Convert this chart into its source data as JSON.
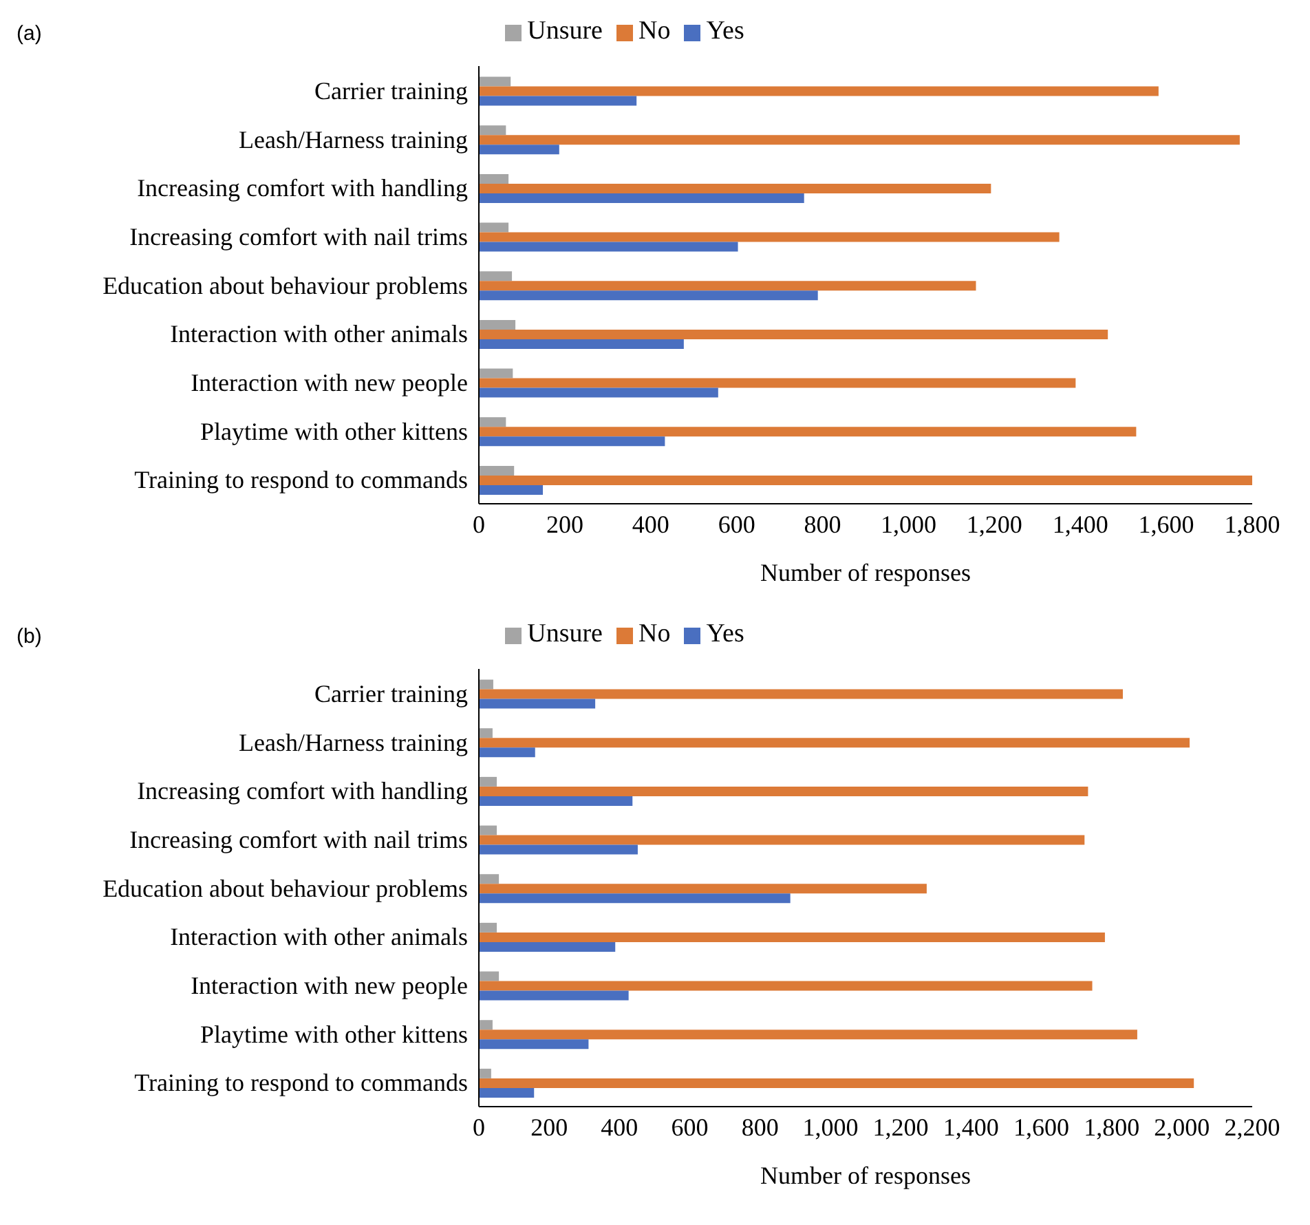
{
  "chart_data": [
    {
      "type": "bar",
      "title": "(a)",
      "orientation": "horizontal",
      "xlabel": "Number of responses",
      "legend": "top",
      "grid": false,
      "categories": [
        "Carrier training",
        "Leash/Harness training",
        "Increasing comfort with handling",
        "Increasing comfort with nail trims",
        "Education about behaviour problems",
        "Interaction with other animals",
        "Interaction with new people",
        "Playtime with other kittens",
        "Training to respond to commands"
      ],
      "xlim": [
        0,
        1800
      ],
      "xticks": [
        0,
        200,
        400,
        600,
        800,
        {
          "value": 1000,
          "label": "1,000"
        },
        {
          "value": 1200,
          "label": "1,200"
        },
        {
          "value": 1400,
          "label": "1,400"
        },
        {
          "value": 1600,
          "label": "1,600"
        },
        {
          "value": 1800,
          "label": "1,800"
        }
      ],
      "series": [
        {
          "name": "Unsure",
          "color": "#a5a5a5",
          "values": [
            74,
            63,
            69,
            69,
            77,
            85,
            79,
            63,
            82
          ]
        },
        {
          "name": "No",
          "color": "#dc7a37",
          "values": [
            1582,
            1771,
            1192,
            1351,
            1157,
            1464,
            1389,
            1530,
            1800
          ]
        },
        {
          "name": "Yes",
          "color": "#4a6fc0",
          "values": [
            367,
            187,
            757,
            603,
            789,
            477,
            557,
            433,
            149
          ]
        }
      ]
    },
    {
      "type": "bar",
      "title": "(b)",
      "orientation": "horizontal",
      "xlabel": "Number of responses",
      "legend": "top",
      "grid": false,
      "categories": [
        "Carrier training",
        "Leash/Harness training",
        "Increasing comfort with handling",
        "Increasing comfort with nail trims",
        "Education about behaviour problems",
        "Interaction with other animals",
        "Interaction with new people",
        "Playtime with other kittens",
        "Training to respond to commands"
      ],
      "xlim": [
        0,
        2200
      ],
      "xticks": [
        0,
        200,
        400,
        600,
        800,
        {
          "value": 1000,
          "label": "1,000"
        },
        {
          "value": 1200,
          "label": "1,200"
        },
        {
          "value": 1400,
          "label": "1,400"
        },
        {
          "value": 1600,
          "label": "1,600"
        },
        {
          "value": 1800,
          "label": "1,800"
        },
        {
          "value": 2000,
          "label": "2,000"
        },
        {
          "value": 2200,
          "label": "2,200"
        }
      ],
      "series": [
        {
          "name": "Unsure",
          "color": "#a5a5a5",
          "values": [
            41,
            39,
            51,
            51,
            57,
            51,
            57,
            39,
            35
          ]
        },
        {
          "name": "No",
          "color": "#dc7a37",
          "values": [
            1832,
            2022,
            1733,
            1723,
            1274,
            1781,
            1745,
            1873,
            2034
          ]
        },
        {
          "name": "Yes",
          "color": "#4a6fc0",
          "values": [
            331,
            160,
            437,
            452,
            886,
            388,
            426,
            312,
            157
          ]
        }
      ]
    }
  ]
}
